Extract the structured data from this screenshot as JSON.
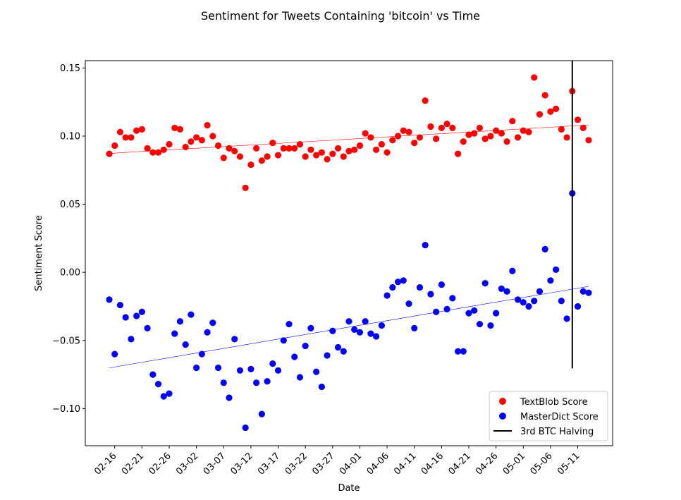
{
  "chart_data": {
    "type": "scatter",
    "title": "Sentiment for Tweets Containing 'bitcoin' vs Time",
    "xlabel": "Date",
    "ylabel": "Sentiment Score",
    "ylim": [
      -0.125,
      0.157
    ],
    "yticks": [
      "0.15",
      "0.10",
      "0.05",
      "0.00",
      "−0.05",
      "−0.10"
    ],
    "ytick_values": [
      0.15,
      0.1,
      0.05,
      0.0,
      -0.05,
      -0.1
    ],
    "x": [
      "02-15",
      "02-16",
      "02-17",
      "02-18",
      "02-19",
      "02-20",
      "02-21",
      "02-22",
      "02-23",
      "02-24",
      "02-25",
      "02-26",
      "02-27",
      "02-28",
      "02-29",
      "03-01",
      "03-02",
      "03-03",
      "03-04",
      "03-05",
      "03-06",
      "03-07",
      "03-08",
      "03-09",
      "03-10",
      "03-11",
      "03-12",
      "03-13",
      "03-14",
      "03-15",
      "03-16",
      "03-17",
      "03-18",
      "03-19",
      "03-20",
      "03-21",
      "03-22",
      "03-23",
      "03-24",
      "03-25",
      "03-26",
      "03-27",
      "03-28",
      "03-29",
      "03-30",
      "03-31",
      "04-01",
      "04-02",
      "04-03",
      "04-04",
      "04-05",
      "04-06",
      "04-07",
      "04-08",
      "04-09",
      "04-10",
      "04-11",
      "04-12",
      "04-13",
      "04-14",
      "04-15",
      "04-16",
      "04-17",
      "04-18",
      "04-19",
      "04-20",
      "04-21",
      "04-22",
      "04-23",
      "04-24",
      "04-25",
      "04-26",
      "04-27",
      "04-28",
      "04-29",
      "04-30",
      "05-01",
      "05-02",
      "05-03",
      "05-04",
      "05-05",
      "05-06",
      "05-07",
      "05-08",
      "05-09",
      "05-10",
      "05-11",
      "05-12",
      "05-13"
    ],
    "xticks": [
      "02-16",
      "02-21",
      "02-26",
      "03-02",
      "03-07",
      "03-12",
      "03-17",
      "03-22",
      "03-27",
      "04-01",
      "04-06",
      "04-11",
      "04-16",
      "04-21",
      "04-26",
      "05-01",
      "05-06",
      "05-11"
    ],
    "xtick_positions": [
      1,
      6,
      11,
      16,
      21,
      26,
      31,
      36,
      41,
      46,
      51,
      56,
      61,
      66,
      71,
      76,
      81,
      86
    ],
    "series": [
      {
        "name": "TextBlob Score",
        "color": "#ff0000",
        "values": [
          0.087,
          0.093,
          0.103,
          0.099,
          0.099,
          0.104,
          0.105,
          0.091,
          0.088,
          0.088,
          0.09,
          0.094,
          0.106,
          0.105,
          0.092,
          0.096,
          0.099,
          0.097,
          0.108,
          0.1,
          0.093,
          0.084,
          0.091,
          0.089,
          0.085,
          0.062,
          0.079,
          0.091,
          0.082,
          0.085,
          0.095,
          0.086,
          0.091,
          0.091,
          0.091,
          0.094,
          0.085,
          0.09,
          0.086,
          0.088,
          0.083,
          0.087,
          0.091,
          0.085,
          0.089,
          0.09,
          0.093,
          0.102,
          0.099,
          0.09,
          0.094,
          0.088,
          0.097,
          0.1,
          0.104,
          0.103,
          0.095,
          0.099,
          0.126,
          0.107,
          0.098,
          0.106,
          0.109,
          0.106,
          0.087,
          0.096,
          0.101,
          0.102,
          0.106,
          0.098,
          0.1,
          0.104,
          0.102,
          0.096,
          0.111,
          0.099,
          0.104,
          0.103,
          0.143,
          0.116,
          0.13,
          0.118,
          0.12,
          0.105,
          0.099,
          0.133,
          0.112,
          0.106,
          0.097
        ],
        "trend": [
          0.0873,
          0.1082
        ]
      },
      {
        "name": "MasterDict Score",
        "color": "#0000ff",
        "values": [
          -0.02,
          -0.06,
          -0.024,
          -0.033,
          -0.049,
          -0.032,
          -0.029,
          -0.041,
          -0.075,
          -0.082,
          -0.091,
          -0.089,
          -0.045,
          -0.036,
          -0.053,
          -0.031,
          -0.07,
          -0.06,
          -0.044,
          -0.037,
          -0.07,
          -0.081,
          -0.092,
          -0.049,
          -0.072,
          -0.114,
          -0.071,
          -0.081,
          -0.104,
          -0.08,
          -0.067,
          -0.072,
          -0.05,
          -0.038,
          -0.062,
          -0.077,
          -0.054,
          -0.041,
          -0.073,
          -0.084,
          -0.061,
          -0.043,
          -0.055,
          -0.058,
          -0.036,
          -0.042,
          -0.044,
          -0.036,
          -0.045,
          -0.047,
          -0.039,
          -0.017,
          -0.011,
          -0.007,
          -0.006,
          -0.023,
          -0.041,
          -0.011,
          0.02,
          -0.016,
          -0.029,
          -0.009,
          -0.027,
          -0.019,
          -0.058,
          -0.058,
          -0.03,
          -0.028,
          -0.038,
          -0.008,
          -0.039,
          -0.03,
          -0.012,
          -0.014,
          0.001,
          -0.02,
          -0.022,
          -0.025,
          -0.021,
          -0.014,
          0.017,
          -0.006,
          0.002,
          -0.021,
          -0.034,
          0.058,
          -0.025,
          -0.014,
          -0.015
        ],
        "trend": [
          -0.0701,
          -0.0103
        ]
      }
    ],
    "vline": {
      "name": "3rd BTC Halving",
      "color": "#000000",
      "x": "05-10",
      "ymin": -0.0705,
      "ymax": 0.157
    },
    "legend": {
      "placement": "lower-right",
      "entries": [
        "TextBlob Score",
        "MasterDict Score",
        "3rd BTC Halving"
      ]
    },
    "grid": false
  }
}
